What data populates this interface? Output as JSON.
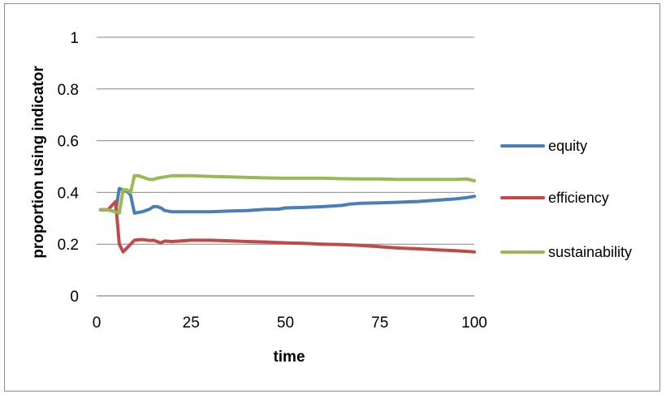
{
  "chart_data": {
    "type": "line",
    "title": "",
    "xlabel": "time",
    "ylabel": "proportion using indicator",
    "xlim": [
      0,
      100
    ],
    "ylim": [
      0,
      1
    ],
    "x_ticks": [
      0,
      25,
      50,
      75,
      100
    ],
    "y_ticks": [
      0,
      0.2,
      0.4,
      0.6,
      0.8,
      1
    ],
    "x_tick_labels": [
      "0",
      "25",
      "50",
      "75",
      "100"
    ],
    "y_tick_labels": [
      "0",
      "0.2",
      "0.4",
      "0.6",
      "0.8",
      "1"
    ],
    "grid": "horizontal",
    "legend_position": "right",
    "series": [
      {
        "name": "equity",
        "color": "#4a7ebb",
        "points": [
          [
            1,
            0.333
          ],
          [
            3,
            0.333
          ],
          [
            5,
            0.325
          ],
          [
            6,
            0.415
          ],
          [
            7,
            0.41
          ],
          [
            8,
            0.405
          ],
          [
            9,
            0.39
          ],
          [
            10,
            0.32
          ],
          [
            12,
            0.325
          ],
          [
            14,
            0.335
          ],
          [
            15,
            0.345
          ],
          [
            16,
            0.345
          ],
          [
            17,
            0.34
          ],
          [
            18,
            0.33
          ],
          [
            20,
            0.325
          ],
          [
            25,
            0.325
          ],
          [
            30,
            0.325
          ],
          [
            35,
            0.328
          ],
          [
            40,
            0.33
          ],
          [
            45,
            0.335
          ],
          [
            48,
            0.335
          ],
          [
            50,
            0.34
          ],
          [
            55,
            0.342
          ],
          [
            60,
            0.345
          ],
          [
            65,
            0.35
          ],
          [
            67,
            0.355
          ],
          [
            70,
            0.358
          ],
          [
            75,
            0.36
          ],
          [
            80,
            0.362
          ],
          [
            85,
            0.365
          ],
          [
            90,
            0.37
          ],
          [
            95,
            0.375
          ],
          [
            98,
            0.38
          ],
          [
            100,
            0.385
          ]
        ]
      },
      {
        "name": "efficiency",
        "color": "#be4b48",
        "points": [
          [
            1,
            0.333
          ],
          [
            3,
            0.333
          ],
          [
            5,
            0.365
          ],
          [
            6,
            0.2
          ],
          [
            7,
            0.17
          ],
          [
            8,
            0.185
          ],
          [
            9,
            0.2
          ],
          [
            10,
            0.215
          ],
          [
            12,
            0.218
          ],
          [
            14,
            0.214
          ],
          [
            15,
            0.215
          ],
          [
            16,
            0.21
          ],
          [
            17,
            0.205
          ],
          [
            18,
            0.212
          ],
          [
            20,
            0.21
          ],
          [
            25,
            0.215
          ],
          [
            30,
            0.215
          ],
          [
            35,
            0.213
          ],
          [
            40,
            0.21
          ],
          [
            45,
            0.208
          ],
          [
            50,
            0.205
          ],
          [
            55,
            0.203
          ],
          [
            60,
            0.2
          ],
          [
            65,
            0.198
          ],
          [
            70,
            0.195
          ],
          [
            75,
            0.19
          ],
          [
            80,
            0.185
          ],
          [
            85,
            0.182
          ],
          [
            90,
            0.178
          ],
          [
            95,
            0.175
          ],
          [
            98,
            0.172
          ],
          [
            100,
            0.17
          ]
        ]
      },
      {
        "name": "sustainability",
        "color": "#98b954",
        "points": [
          [
            1,
            0.333
          ],
          [
            3,
            0.333
          ],
          [
            5,
            0.325
          ],
          [
            6,
            0.32
          ],
          [
            7,
            0.41
          ],
          [
            8,
            0.41
          ],
          [
            9,
            0.4
          ],
          [
            10,
            0.465
          ],
          [
            11,
            0.465
          ],
          [
            12,
            0.46
          ],
          [
            14,
            0.45
          ],
          [
            15,
            0.45
          ],
          [
            16,
            0.455
          ],
          [
            18,
            0.46
          ],
          [
            20,
            0.465
          ],
          [
            25,
            0.465
          ],
          [
            30,
            0.462
          ],
          [
            35,
            0.46
          ],
          [
            40,
            0.458
          ],
          [
            45,
            0.456
          ],
          [
            50,
            0.455
          ],
          [
            55,
            0.455
          ],
          [
            60,
            0.455
          ],
          [
            65,
            0.453
          ],
          [
            70,
            0.452
          ],
          [
            75,
            0.452
          ],
          [
            80,
            0.45
          ],
          [
            85,
            0.45
          ],
          [
            90,
            0.45
          ],
          [
            95,
            0.45
          ],
          [
            98,
            0.452
          ],
          [
            100,
            0.445
          ]
        ]
      }
    ]
  }
}
